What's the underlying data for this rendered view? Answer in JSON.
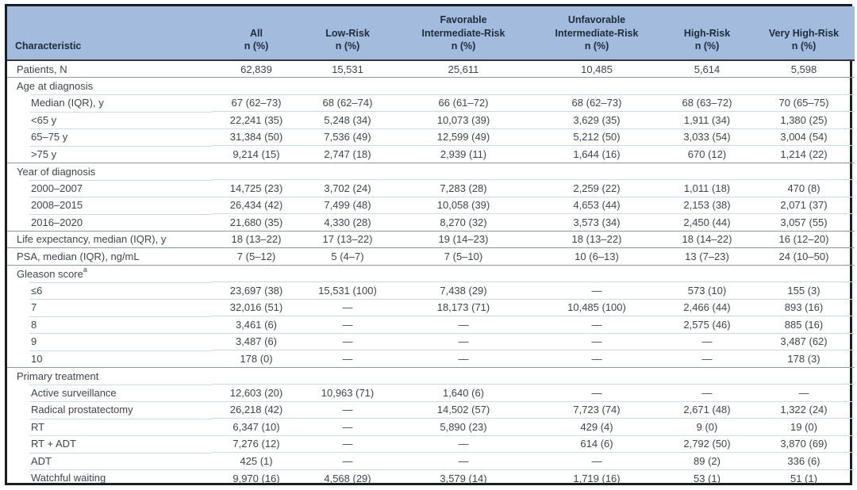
{
  "colors": {
    "header_background": "#a3bcdd",
    "header_text": "#1e2b3c",
    "body_text": "#3e464d",
    "outer_border": "#1b1e21",
    "section_divider": "#8f979e",
    "row_divider": "#c9dcee"
  },
  "table": {
    "columns": [
      {
        "id": "characteristic",
        "lines": [
          "Characteristic"
        ]
      },
      {
        "id": "all",
        "lines": [
          "All",
          "n (%)"
        ]
      },
      {
        "id": "low-risk",
        "lines": [
          "Low-Risk",
          "n (%)"
        ]
      },
      {
        "id": "favorable-intermediate-risk",
        "lines": [
          "Favorable",
          "Intermediate-Risk",
          "n (%)"
        ]
      },
      {
        "id": "unfavorable-intermediate-risk",
        "lines": [
          "Unfavorable",
          "Intermediate-Risk",
          "n (%)"
        ]
      },
      {
        "id": "high-risk",
        "lines": [
          "High-Risk",
          "n (%)"
        ]
      },
      {
        "id": "very-high-risk",
        "lines": [
          "Very High-Risk",
          "n (%)"
        ]
      }
    ],
    "rows": [
      {
        "label": "Patients, N",
        "level": "top",
        "values": [
          "62,839",
          "15,531",
          "25,611",
          "10,485",
          "5,614",
          "5,598"
        ]
      },
      {
        "label": "Age at diagnosis",
        "level": "section",
        "values": [
          "",
          "",
          "",
          "",
          "",
          ""
        ]
      },
      {
        "label": "Median (IQR), y",
        "level": "sub",
        "values": [
          "67 (62–73)",
          "68 (62–74)",
          "66 (61–72)",
          "68 (62–73)",
          "68 (63–72)",
          "70 (65–75)"
        ]
      },
      {
        "label": "<65 y",
        "level": "sub",
        "values": [
          "22,241 (35)",
          "5,248 (34)",
          "10,073 (39)",
          "3,629 (35)",
          "1,911 (34)",
          "1,380 (25)"
        ]
      },
      {
        "label": "65–75 y",
        "level": "sub",
        "values": [
          "31,384 (50)",
          "7,536 (49)",
          "12,599 (49)",
          "5,212 (50)",
          "3,033 (54)",
          "3,004 (54)"
        ]
      },
      {
        "label": ">75 y",
        "level": "sub",
        "values": [
          "9,214 (15)",
          "2,747 (18)",
          "2,939 (11)",
          "1,644 (16)",
          "670 (12)",
          "1,214 (22)"
        ]
      },
      {
        "label": "Year of diagnosis",
        "level": "section",
        "values": [
          "",
          "",
          "",
          "",
          "",
          ""
        ]
      },
      {
        "label": "2000–2007",
        "level": "sub",
        "values": [
          "14,725 (23)",
          "3,702 (24)",
          "7,283 (28)",
          "2,259 (22)",
          "1,011 (18)",
          "470 (8)"
        ]
      },
      {
        "label": "2008–2015",
        "level": "sub",
        "values": [
          "26,434 (42)",
          "7,499 (48)",
          "10,058 (39)",
          "4,653 (44)",
          "2,153 (38)",
          "2,071 (37)"
        ]
      },
      {
        "label": "2016–2020",
        "level": "sub",
        "values": [
          "21,680 (35)",
          "4,330 (28)",
          "8,270 (32)",
          "3,573 (34)",
          "2,450 (44)",
          "3,057 (55)"
        ]
      },
      {
        "label": "Life expectancy, median (IQR), y",
        "level": "top",
        "values": [
          "18 (13–22)",
          "17 (13–22)",
          "19 (14–23)",
          "18 (13–22)",
          "18 (14–22)",
          "16 (12–20)"
        ]
      },
      {
        "label": "PSA, median (IQR), ng/mL",
        "level": "top",
        "values": [
          "7 (5–12)",
          "5 (4–7)",
          "7 (5–10)",
          "10 (6–13)",
          "13 (7–23)",
          "24 (10–50)"
        ]
      },
      {
        "label": "Gleason score",
        "sup": "a",
        "level": "section",
        "values": [
          "",
          "",
          "",
          "",
          "",
          ""
        ]
      },
      {
        "label": "≤6",
        "level": "sub",
        "values": [
          "23,697 (38)",
          "15,531 (100)",
          "7,438 (29)",
          "—",
          "573 (10)",
          "155 (3)"
        ]
      },
      {
        "label": "7",
        "level": "sub",
        "values": [
          "32,016 (51)",
          "—",
          "18,173 (71)",
          "10,485 (100)",
          "2,466 (44)",
          "893 (16)"
        ]
      },
      {
        "label": "8",
        "level": "sub",
        "values": [
          "3,461 (6)",
          "—",
          "—",
          "—",
          "2,575 (46)",
          "885 (16)"
        ]
      },
      {
        "label": "9",
        "level": "sub",
        "values": [
          "3,487 (6)",
          "—",
          "—",
          "—",
          "—",
          "3,487 (62)"
        ]
      },
      {
        "label": "10",
        "level": "sub",
        "values": [
          "178 (0)",
          "—",
          "—",
          "—",
          "—",
          "178 (3)"
        ]
      },
      {
        "label": "Primary treatment",
        "level": "section",
        "values": [
          "",
          "",
          "",
          "",
          "",
          ""
        ]
      },
      {
        "label": "Active surveillance",
        "level": "sub",
        "values": [
          "12,603 (20)",
          "10,963 (71)",
          "1,640 (6)",
          "—",
          "—",
          "—"
        ]
      },
      {
        "label": "Radical prostatectomy",
        "level": "sub",
        "values": [
          "26,218 (42)",
          "—",
          "14,502 (57)",
          "7,723 (74)",
          "2,671 (48)",
          "1,322 (24)"
        ]
      },
      {
        "label": "RT",
        "level": "sub",
        "values": [
          "6,347 (10)",
          "—",
          "5,890 (23)",
          "429 (4)",
          "9 (0)",
          "19 (0)"
        ]
      },
      {
        "label": "RT + ADT",
        "level": "sub",
        "values": [
          "7,276 (12)",
          "—",
          "—",
          "614 (6)",
          "2,792 (50)",
          "3,870 (69)"
        ]
      },
      {
        "label": "ADT",
        "level": "sub",
        "values": [
          "425 (1)",
          "—",
          "—",
          "—",
          "89 (2)",
          "336 (6)"
        ]
      },
      {
        "label": "Watchful waiting",
        "level": "sub",
        "values": [
          "9,970 (16)",
          "4,568 (29)",
          "3,579 (14)",
          "1,719 (16)",
          "53 (1)",
          "51 (1)"
        ]
      }
    ]
  }
}
